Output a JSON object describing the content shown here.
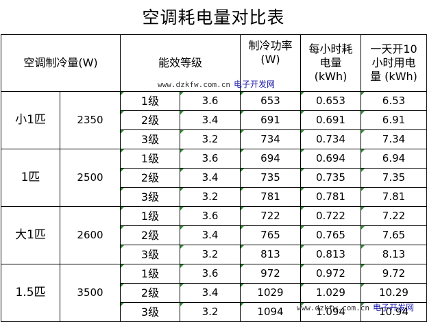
{
  "title": "空调耗电量对比表",
  "header": {
    "capacity": "空调制冷量(W)",
    "efficiency": "能效等级",
    "power": "制冷功率\n(W)",
    "hourly": "每小时耗\n电量\n(kWh)",
    "daily": "一天开10\n小时用电\n量 (kWh)"
  },
  "groups": [
    {
      "name": "小1匹",
      "capacity": "2350",
      "rows": [
        {
          "grade": "1级",
          "ratio": "3.6",
          "power": "653",
          "hourly": "0.653",
          "daily": "6.53"
        },
        {
          "grade": "2级",
          "ratio": "3.4",
          "power": "691",
          "hourly": "0.691",
          "daily": "6.91"
        },
        {
          "grade": "3级",
          "ratio": "3.2",
          "power": "734",
          "hourly": "0.734",
          "daily": "7.34"
        }
      ]
    },
    {
      "name": "1匹",
      "capacity": "2500",
      "rows": [
        {
          "grade": "1级",
          "ratio": "3.6",
          "power": "694",
          "hourly": "0.694",
          "daily": "6.94"
        },
        {
          "grade": "2级",
          "ratio": "3.4",
          "power": "735",
          "hourly": "0.735",
          "daily": "7.35"
        },
        {
          "grade": "3级",
          "ratio": "3.2",
          "power": "781",
          "hourly": "0.781",
          "daily": "7.81"
        }
      ]
    },
    {
      "name": "大1匹",
      "capacity": "2600",
      "rows": [
        {
          "grade": "1级",
          "ratio": "3.6",
          "power": "722",
          "hourly": "0.722",
          "daily": "7.22"
        },
        {
          "grade": "2级",
          "ratio": "3.4",
          "power": "765",
          "hourly": "0.765",
          "daily": "7.65"
        },
        {
          "grade": "3级",
          "ratio": "3.2",
          "power": "813",
          "hourly": "0.813",
          "daily": "8.13"
        }
      ]
    },
    {
      "name": "1.5匹",
      "capacity": "3500",
      "rows": [
        {
          "grade": "1级",
          "ratio": "3.6",
          "power": "972",
          "hourly": "0.972",
          "daily": "9.72"
        },
        {
          "grade": "2级",
          "ratio": "3.4",
          "power": "1029",
          "hourly": "1.029",
          "daily": "10.29"
        },
        {
          "grade": "3级",
          "ratio": "3.2",
          "power": "1094",
          "hourly": "1.094",
          "daily": "10.94"
        }
      ]
    }
  ],
  "watermarks": [
    {
      "url": "www.dzkfw.com.cn",
      "name": "电子开发网"
    },
    {
      "url": "www.dzkfw.com.cn",
      "name": "电子开发网"
    }
  ],
  "colors": {
    "border": "#000000",
    "cell_marker": "#2e8b2e",
    "watermark_name": "#1a1aa8"
  }
}
